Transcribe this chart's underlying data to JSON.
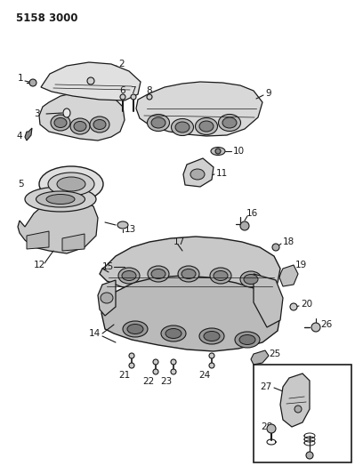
{
  "title": "5158 3000",
  "bg_color": "#ffffff",
  "line_color": "#1a1a1a",
  "fig_width": 4.08,
  "fig_height": 5.33,
  "dpi": 100
}
